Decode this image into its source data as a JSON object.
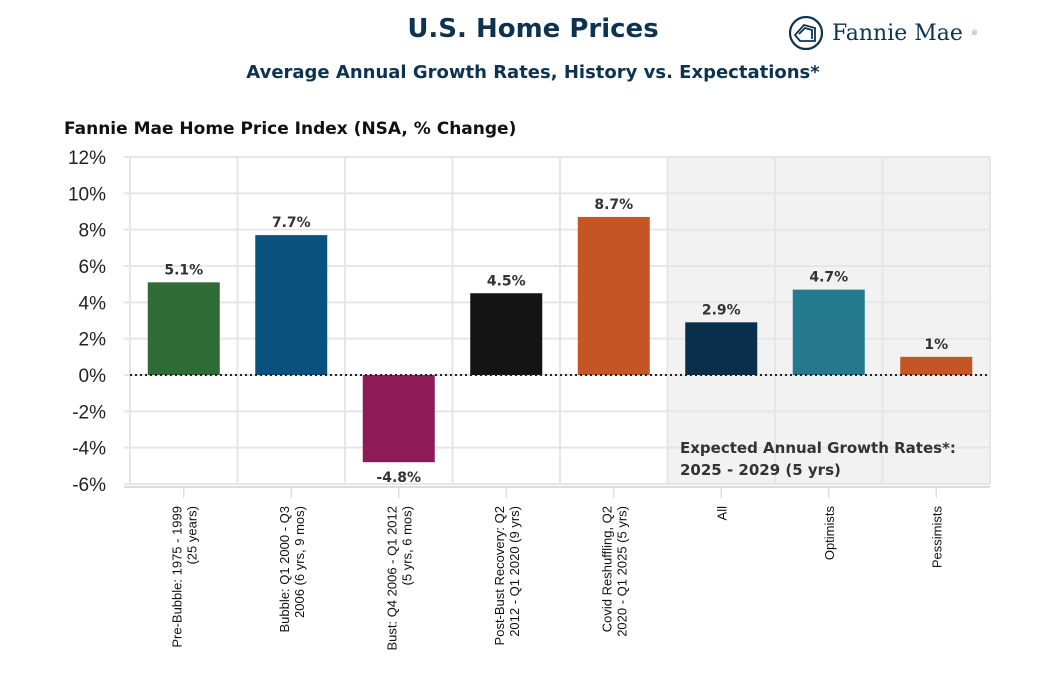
{
  "header": {
    "title": "U.S. Home Prices",
    "subtitle": "Average Annual Growth Rates, History vs. Expectations*",
    "logo_text": "Fannie Mae",
    "logo_icon": "house-in-circle-icon"
  },
  "chart_data": {
    "type": "bar",
    "title": "U.S. Home Prices",
    "subtitle": "Average Annual Growth Rates, History vs. Expectations*",
    "ylabel": "Fannie Mae Home Price Index (NSA, % Change)",
    "ylim": [
      -6,
      12
    ],
    "yticks": [
      "12%",
      "10%",
      "8%",
      "6%",
      "4%",
      "2%",
      "0%",
      "-2%",
      "-4%",
      "-6%"
    ],
    "ytick_values": [
      12,
      10,
      8,
      6,
      4,
      2,
      0,
      -2,
      -4,
      -6
    ],
    "grid": true,
    "categories": [
      [
        "Pre-Bubble: 1975 - 1999",
        "(25 years)"
      ],
      [
        "Bubble: Q1 2000 - Q3",
        "2006 (6 yrs, 9 mos)"
      ],
      [
        "Bust: Q4 2006 - Q1 2012",
        "(5 yrs, 6 mos)"
      ],
      [
        "Post-Bust Recovery: Q2",
        "2012 - Q1 2020 (9 yrs)"
      ],
      [
        "Covid Reshuffling, Q2",
        "2020 - Q1 2025 (5 yrs)"
      ],
      [
        "All"
      ],
      [
        "Optimists"
      ],
      [
        "Pessimists"
      ]
    ],
    "values": [
      5.1,
      7.7,
      -4.8,
      4.5,
      8.7,
      2.9,
      4.7,
      1.0
    ],
    "data_labels": [
      "5.1%",
      "7.7%",
      "-4.8%",
      "4.5%",
      "8.7%",
      "2.9%",
      "4.7%",
      "1%"
    ],
    "colors": [
      "#2e6b37",
      "#0a527e",
      "#8e1b57",
      "#141414",
      "#c55524",
      "#0a2f4b",
      "#25798e",
      "#c55524"
    ],
    "shaded_region": {
      "from_category": 5,
      "to_category": 7,
      "color": "#f2f2f2"
    },
    "annotation": [
      "Expected Annual Growth Rates*:",
      "2025 - 2029 (5 yrs)"
    ]
  }
}
